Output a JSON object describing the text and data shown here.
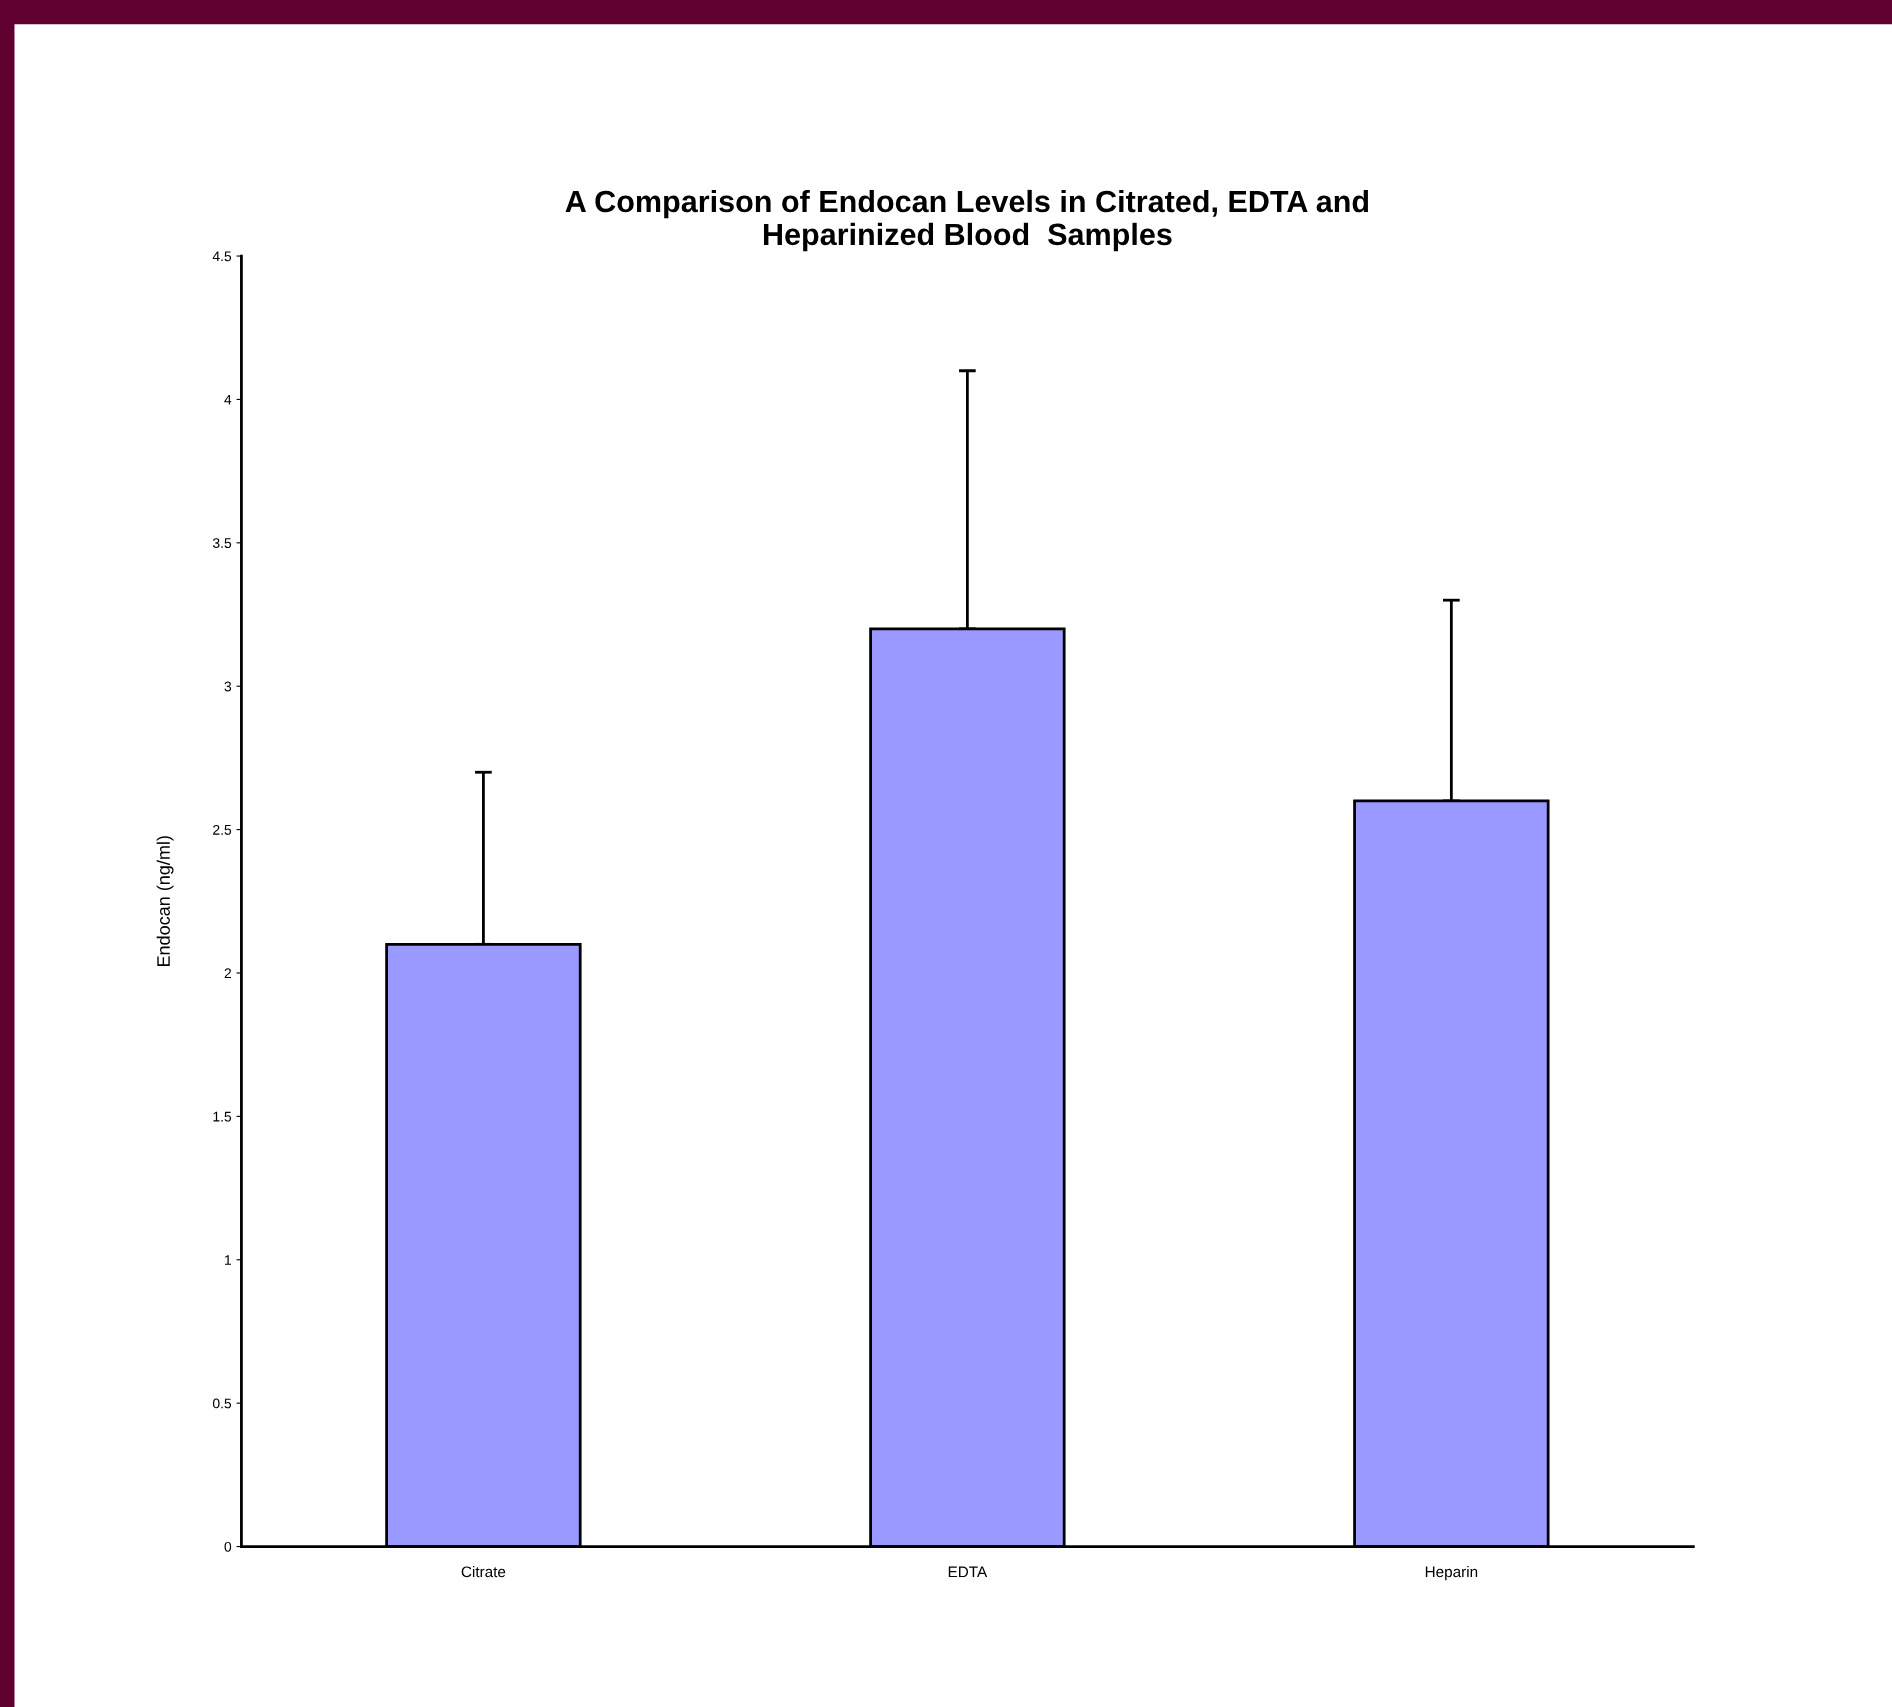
{
  "chart_data": {
    "type": "bar",
    "title": "A Comparison of Endocan Levels in Citrated, EDTA and\nHeparinized Blood  Samples",
    "ylabel": "Endocan (ng/ml)",
    "categories": [
      "Citrate",
      "EDTA",
      "Heparin"
    ],
    "values": [
      2.1,
      3.2,
      2.6
    ],
    "errors": [
      [
        2.1,
        2.7
      ],
      [
        3.2,
        4.1
      ],
      [
        2.6,
        3.3
      ]
    ],
    "color": "#9999ff",
    "ylim": [
      0,
      4.5
    ],
    "yticks": [
      0,
      0.5,
      1,
      1.5,
      2,
      2.5,
      3,
      3.5,
      4,
      4.5
    ],
    "grid": false,
    "legend": false
  }
}
